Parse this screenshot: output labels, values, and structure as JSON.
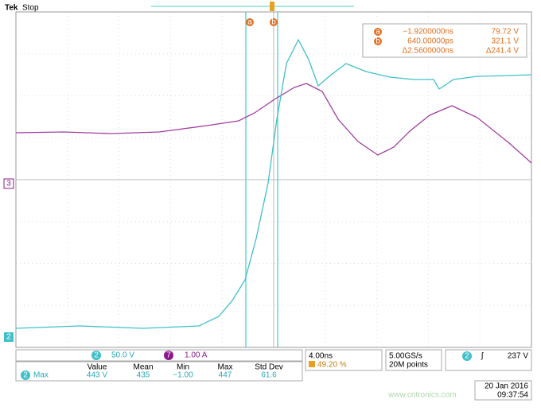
{
  "header": {
    "brand": "Tek",
    "status": "Stop"
  },
  "markers": {
    "cursor_a": "a",
    "cursor_b": "b",
    "ch3": "3",
    "ch2": "2"
  },
  "readout": {
    "rows": [
      {
        "marker": "a",
        "time": "−1.9200000ns",
        "value": "79.72 V"
      },
      {
        "marker": "b",
        "time": "640.00000ps",
        "value": "321.1 V"
      },
      {
        "time": "Δ2.5600000ns",
        "value": "Δ241.4 V"
      }
    ]
  },
  "channels": [
    {
      "id": "2",
      "scale": "50.0 V"
    },
    {
      "id": "7",
      "scale": "1.00 A"
    }
  ],
  "timebase": {
    "scale": "4.00ns",
    "position": "49.20 %"
  },
  "acquisition": {
    "rate": "5.00GS/s",
    "length": "20M points"
  },
  "trigger": {
    "channel": "2",
    "slope": "ʃ",
    "level": "237 V"
  },
  "measurement": {
    "headers": [
      "Value",
      "Mean",
      "Min",
      "Max",
      "Std Dev"
    ],
    "channel": "2",
    "name": "Max",
    "values": [
      "443 V",
      "435",
      "−1.00",
      "447",
      "61.6"
    ]
  },
  "datetime": {
    "date": "20 Jan 2016",
    "time": "09:37:54"
  },
  "watermark": "www.cntronics.com"
}
